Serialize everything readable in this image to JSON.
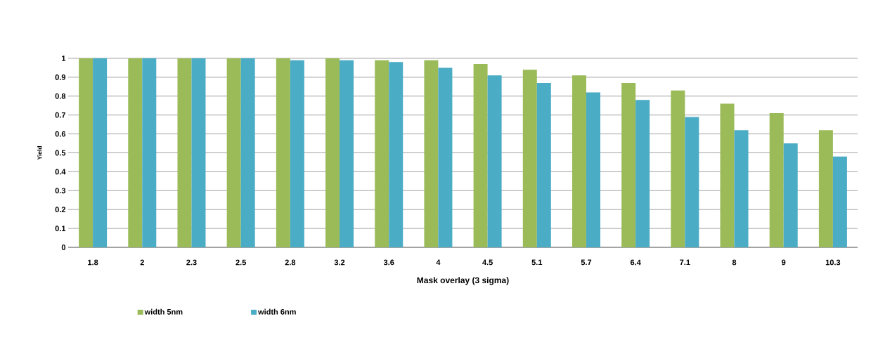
{
  "chart_data": {
    "type": "bar",
    "xlabel": "Mask overlay (3 sigma)",
    "ylabel": "Yield",
    "categories": [
      "1.8",
      "2",
      "2.3",
      "2.5",
      "2.8",
      "3.2",
      "3.6",
      "4",
      "4.5",
      "5.1",
      "5.7",
      "6.4",
      "7.1",
      "8",
      "9",
      "10.3"
    ],
    "series": [
      {
        "name": "width 5nm",
        "color": "#9bbb59",
        "values": [
          1,
          1,
          1,
          1,
          1,
          1,
          0.99,
          0.99,
          0.97,
          0.94,
          0.91,
          0.87,
          0.83,
          0.76,
          0.71,
          0.62
        ]
      },
      {
        "name": "width 6nm",
        "color": "#4bacc6",
        "values": [
          1,
          1,
          1,
          1,
          0.99,
          0.99,
          0.98,
          0.95,
          0.91,
          0.87,
          0.82,
          0.78,
          0.69,
          0.62,
          0.55,
          0.48
        ]
      }
    ],
    "ylim": [
      0,
      1
    ],
    "yticks": [
      0,
      0.1,
      0.2,
      0.3,
      0.4,
      0.5,
      0.6,
      0.7,
      0.8,
      0.9,
      1
    ],
    "grid": "y",
    "legend": "bottom"
  }
}
